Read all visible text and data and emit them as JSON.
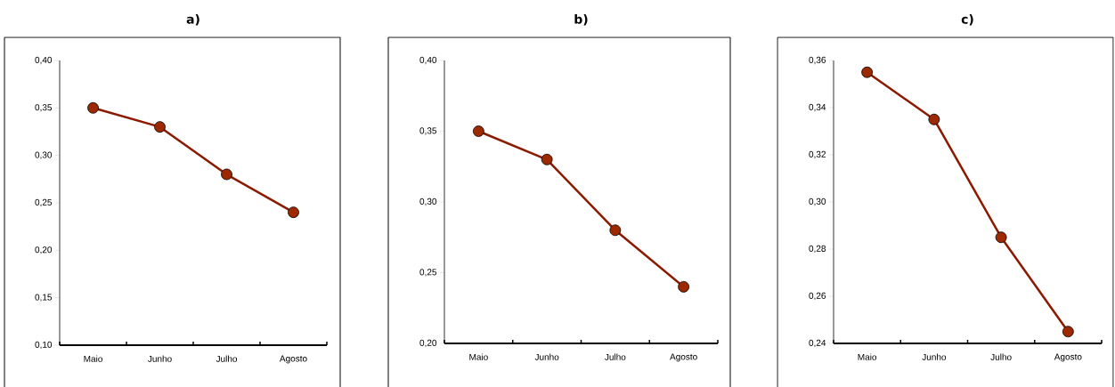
{
  "chart_data": [
    {
      "type": "line",
      "title": "a)",
      "categories": [
        "Maio",
        "Junho",
        "Julho",
        "Agosto"
      ],
      "marker": "circle",
      "series": [
        {
          "color": "#8b1a00",
          "values": [
            0.35,
            0.33,
            0.28,
            0.24
          ]
        }
      ],
      "ylim": [
        0.1,
        0.4
      ],
      "yticks": [
        {
          "value": 0.1,
          "label": "0,10"
        },
        {
          "value": 0.15,
          "label": "0,15"
        },
        {
          "value": 0.2,
          "label": "0,20"
        },
        {
          "value": 0.25,
          "label": "0,25"
        },
        {
          "value": 0.3,
          "label": "0,30"
        },
        {
          "value": 0.35,
          "label": "0,35"
        },
        {
          "value": 0.4,
          "label": "0,40"
        }
      ]
    },
    {
      "type": "line",
      "title": "b)",
      "categories": [
        "Maio",
        "Junho",
        "Julho",
        "Agosto"
      ],
      "marker": "circle",
      "series": [
        {
          "color": "#8b1a00",
          "values": [
            0.35,
            0.33,
            0.28,
            0.24
          ]
        }
      ],
      "ylim": [
        0.2,
        0.4
      ],
      "yticks": [
        {
          "value": 0.2,
          "label": "0,20"
        },
        {
          "value": 0.25,
          "label": "0,25"
        },
        {
          "value": 0.3,
          "label": "0,30"
        },
        {
          "value": 0.35,
          "label": "0,35"
        },
        {
          "value": 0.4,
          "label": "0,40"
        }
      ]
    },
    {
      "type": "line",
      "title": "c)",
      "categories": [
        "Maio",
        "Junho",
        "Julho",
        "Agosto"
      ],
      "marker": "circle",
      "series": [
        {
          "color": "#8b1a00",
          "values": [
            0.355,
            0.335,
            0.285,
            0.245
          ]
        }
      ],
      "ylim": [
        0.24,
        0.36
      ],
      "yticks": [
        {
          "value": 0.24,
          "label": "0,24"
        },
        {
          "value": 0.26,
          "label": "0,26"
        },
        {
          "value": 0.28,
          "label": "0,28"
        },
        {
          "value": 0.3,
          "label": "0,30"
        },
        {
          "value": 0.32,
          "label": "0,32"
        },
        {
          "value": 0.34,
          "label": "0,34"
        },
        {
          "value": 0.36,
          "label": "0,36"
        }
      ]
    }
  ]
}
